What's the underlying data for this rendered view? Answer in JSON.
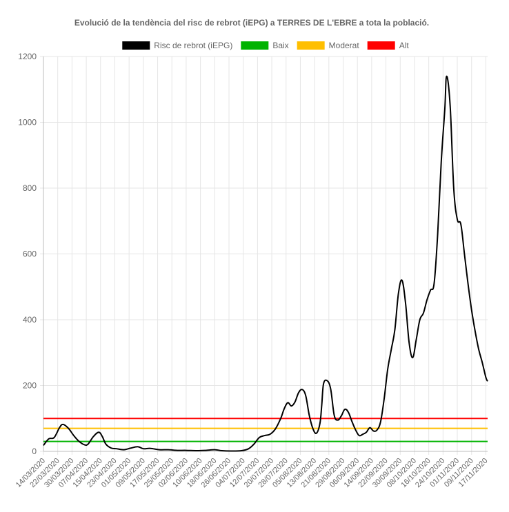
{
  "chart_data": {
    "type": "line",
    "title": "Evolució de la tendència del risc de rebrot (iEPG) a TERRES DE L'EBRE a tota la població.",
    "ylim": [
      0,
      1200
    ],
    "yticks": [
      0,
      200,
      400,
      600,
      800,
      1000,
      1200
    ],
    "grid": true,
    "legend_position": "top",
    "x_start": "14/03/2020",
    "x_end": "18/11/2020",
    "x_tick_labels": [
      "14/03/2020",
      "22/03/2020",
      "30/03/2020",
      "07/04/2020",
      "15/04/2020",
      "23/04/2020",
      "01/05/2020",
      "09/05/2020",
      "17/05/2020",
      "25/05/2020",
      "02/06/2020",
      "10/06/2020",
      "18/06/2020",
      "26/06/2020",
      "04/07/2020",
      "12/07/2020",
      "20/07/2020",
      "28/07/2020",
      "05/08/2020",
      "13/08/2020",
      "21/08/2020",
      "29/08/2020",
      "06/09/2020",
      "14/09/2020",
      "22/09/2020",
      "30/09/2020",
      "08/10/2020",
      "16/10/2020",
      "24/10/2020",
      "01/11/2020",
      "09/11/2020",
      "17/11/2020"
    ],
    "series": [
      {
        "name": "Risc de rebrot (iEPG)",
        "color": "#000000",
        "points": [
          [
            "14/03/2020",
            18
          ],
          [
            "17/03/2020",
            38
          ],
          [
            "20/03/2020",
            42
          ],
          [
            "23/03/2020",
            72
          ],
          [
            "25/03/2020",
            82
          ],
          [
            "28/03/2020",
            70
          ],
          [
            "31/03/2020",
            48
          ],
          [
            "03/04/2020",
            30
          ],
          [
            "06/04/2020",
            20
          ],
          [
            "08/04/2020",
            22
          ],
          [
            "11/04/2020",
            45
          ],
          [
            "14/04/2020",
            58
          ],
          [
            "16/04/2020",
            45
          ],
          [
            "18/04/2020",
            22
          ],
          [
            "21/04/2020",
            10
          ],
          [
            "24/04/2020",
            8
          ],
          [
            "28/04/2020",
            5
          ],
          [
            "02/05/2020",
            10
          ],
          [
            "06/05/2020",
            14
          ],
          [
            "09/05/2020",
            8
          ],
          [
            "13/05/2020",
            9
          ],
          [
            "18/05/2020",
            5
          ],
          [
            "23/05/2020",
            5
          ],
          [
            "28/05/2020",
            3
          ],
          [
            "02/06/2020",
            3
          ],
          [
            "08/06/2020",
            2
          ],
          [
            "13/06/2020",
            3
          ],
          [
            "18/06/2020",
            5
          ],
          [
            "22/06/2020",
            2
          ],
          [
            "27/06/2020",
            1
          ],
          [
            "03/07/2020",
            2
          ],
          [
            "07/07/2020",
            8
          ],
          [
            "10/07/2020",
            22
          ],
          [
            "13/07/2020",
            42
          ],
          [
            "16/07/2020",
            48
          ],
          [
            "19/07/2020",
            52
          ],
          [
            "22/07/2020",
            68
          ],
          [
            "25/07/2020",
            100
          ],
          [
            "27/07/2020",
            130
          ],
          [
            "29/07/2020",
            148
          ],
          [
            "31/07/2020",
            138
          ],
          [
            "02/08/2020",
            150
          ],
          [
            "04/08/2020",
            178
          ],
          [
            "06/08/2020",
            188
          ],
          [
            "08/08/2020",
            170
          ],
          [
            "10/08/2020",
            110
          ],
          [
            "12/08/2020",
            70
          ],
          [
            "14/08/2020",
            55
          ],
          [
            "16/08/2020",
            85
          ],
          [
            "17/08/2020",
            140
          ],
          [
            "18/08/2020",
            205
          ],
          [
            "20/08/2020",
            215
          ],
          [
            "22/08/2020",
            190
          ],
          [
            "24/08/2020",
            110
          ],
          [
            "26/08/2020",
            95
          ],
          [
            "28/08/2020",
            108
          ],
          [
            "30/08/2020",
            128
          ],
          [
            "01/09/2020",
            118
          ],
          [
            "03/09/2020",
            90
          ],
          [
            "05/09/2020",
            65
          ],
          [
            "07/09/2020",
            48
          ],
          [
            "09/09/2020",
            52
          ],
          [
            "11/09/2020",
            58
          ],
          [
            "13/09/2020",
            72
          ],
          [
            "15/09/2020",
            62
          ],
          [
            "17/09/2020",
            65
          ],
          [
            "19/09/2020",
            90
          ],
          [
            "21/09/2020",
            160
          ],
          [
            "23/09/2020",
            250
          ],
          [
            "25/09/2020",
            310
          ],
          [
            "27/09/2020",
            370
          ],
          [
            "29/09/2020",
            480
          ],
          [
            "01/10/2020",
            520
          ],
          [
            "03/10/2020",
            450
          ],
          [
            "05/10/2020",
            330
          ],
          [
            "07/10/2020",
            285
          ],
          [
            "09/10/2020",
            340
          ],
          [
            "11/10/2020",
            400
          ],
          [
            "13/10/2020",
            420
          ],
          [
            "15/10/2020",
            460
          ],
          [
            "17/10/2020",
            490
          ],
          [
            "19/10/2020",
            510
          ],
          [
            "21/10/2020",
            660
          ],
          [
            "23/10/2020",
            880
          ],
          [
            "25/10/2020",
            1040
          ],
          [
            "26/10/2020",
            1140
          ],
          [
            "28/10/2020",
            1050
          ],
          [
            "30/10/2020",
            800
          ],
          [
            "01/11/2020",
            705
          ],
          [
            "03/11/2020",
            690
          ],
          [
            "05/11/2020",
            600
          ],
          [
            "07/11/2020",
            510
          ],
          [
            "09/11/2020",
            430
          ],
          [
            "11/11/2020",
            365
          ],
          [
            "13/11/2020",
            310
          ],
          [
            "15/11/2020",
            270
          ],
          [
            "17/11/2020",
            225
          ],
          [
            "18/11/2020",
            213
          ]
        ]
      },
      {
        "name": "Baix",
        "color": "#00b300",
        "constant": 30
      },
      {
        "name": "Moderat",
        "color": "#ffbf00",
        "constant": 70
      },
      {
        "name": "Alt",
        "color": "#ff0000",
        "constant": 100
      }
    ]
  }
}
